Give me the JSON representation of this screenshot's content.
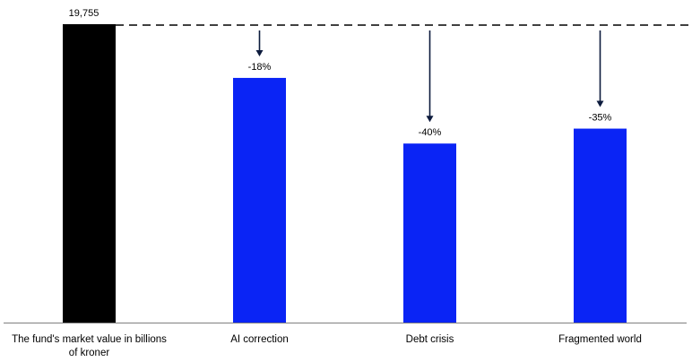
{
  "chart_data": {
    "type": "bar",
    "baseline": {
      "category": "The fund's market value in billions of kroner",
      "value": 19755,
      "label": "19,755",
      "color": "#000000"
    },
    "categories": [
      "The fund's market value in billions of kroner",
      "AI correction",
      "Debt crisis",
      "Fragmented world"
    ],
    "category_label_lines": [
      [
        "The fund's market value in billions",
        "of kroner"
      ],
      [
        "AI correction"
      ],
      [
        "Debt crisis"
      ],
      [
        "Fragmented world"
      ]
    ],
    "scenarios": [
      {
        "name": "AI correction",
        "change_pct": -18,
        "label": "-18%",
        "color": "#0a24f5"
      },
      {
        "name": "Debt crisis",
        "change_pct": -40,
        "label": "-40%",
        "color": "#0a24f5"
      },
      {
        "name": "Fragmented world",
        "change_pct": -35,
        "label": "-35%",
        "color": "#0a24f5"
      }
    ],
    "reference_line": "dashed line at the starting value",
    "arrow_color": "#0d1b3d",
    "axis_color": "#7f7f7f",
    "ylim": [
      0,
      19755
    ],
    "grid": false,
    "legend": "none",
    "title": "",
    "xlabel": "",
    "ylabel": ""
  }
}
